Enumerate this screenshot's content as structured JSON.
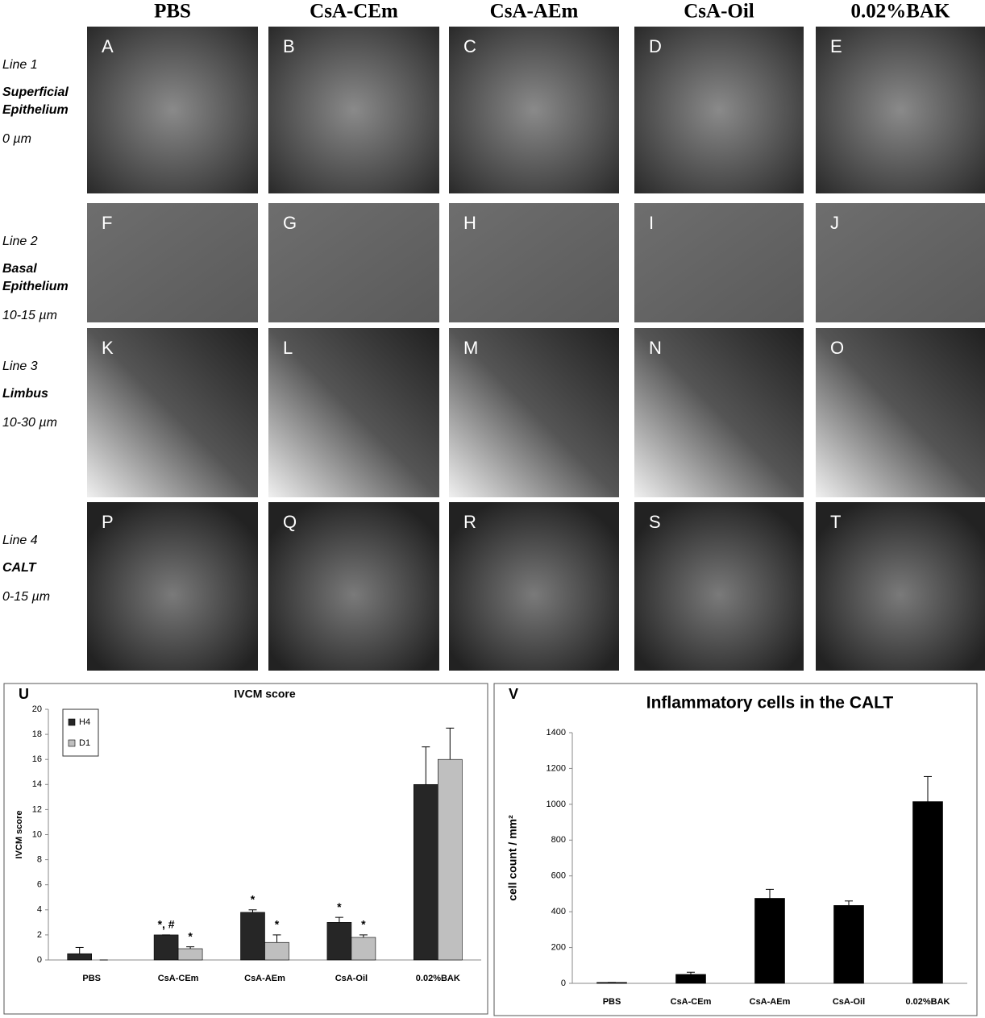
{
  "columns": [
    "PBS",
    "CsA-CEm",
    "CsA-AEm",
    "CsA-Oil",
    "0.02%BAK"
  ],
  "rows": [
    {
      "line": "Line 1",
      "region": [
        "Superficial",
        "Epithelium"
      ],
      "depth": "0 µm"
    },
    {
      "line": "Line 2",
      "region": [
        "Basal",
        "Epithelium"
      ],
      "depth": "10-15 µm"
    },
    {
      "line": "Line 3",
      "region": [
        "Limbus"
      ],
      "depth": "10-30 µm"
    },
    {
      "line": "Line 4",
      "region": [
        "CALT"
      ],
      "depth": "0-15 µm"
    }
  ],
  "panels": [
    "A",
    "B",
    "C",
    "D",
    "E",
    "F",
    "G",
    "H",
    "I",
    "J",
    "K",
    "L",
    "M",
    "N",
    "O",
    "P",
    "Q",
    "R",
    "S",
    "T"
  ],
  "chart_data": [
    {
      "type": "bar",
      "panel": "U",
      "title": "IVCM score",
      "y_label": "IVCM score",
      "categories": [
        "PBS",
        "CsA-CEm",
        "CsA-AEm",
        "CsA-Oil",
        "0.02%BAK"
      ],
      "series": [
        {
          "name": "H4",
          "color": "#262626",
          "values": [
            0.5,
            2,
            3.8,
            3,
            14
          ],
          "errors": [
            0.5,
            0,
            0.2,
            0.4,
            3
          ],
          "annotations": [
            null,
            "*, #",
            "*",
            "*",
            null
          ]
        },
        {
          "name": "D1",
          "color": "#bfbfbf",
          "values": [
            0,
            0.9,
            1.4,
            1.8,
            16
          ],
          "errors": [
            0,
            0.15,
            0.6,
            0.2,
            2.5
          ],
          "annotations": [
            null,
            "*",
            "*",
            "*",
            null
          ]
        }
      ],
      "ylim": [
        0,
        20
      ],
      "yticks": [
        0,
        2,
        4,
        6,
        8,
        10,
        12,
        14,
        16,
        18,
        20
      ],
      "legend": "top-left"
    },
    {
      "type": "bar",
      "panel": "V",
      "title": "Inflammatory cells in the CALT",
      "y_label": "cell count / mm²",
      "categories": [
        "PBS",
        "CsA-CEm",
        "CsA-AEm",
        "CsA-Oil",
        "0.02%BAK"
      ],
      "series": [
        {
          "color": "#000000",
          "values": [
            5,
            50,
            475,
            435,
            1015
          ],
          "errors": [
            0,
            12,
            50,
            25,
            140
          ]
        }
      ],
      "ylim": [
        0,
        1400
      ],
      "yticks": [
        0,
        200,
        400,
        600,
        800,
        1000,
        1200,
        1400
      ]
    }
  ]
}
